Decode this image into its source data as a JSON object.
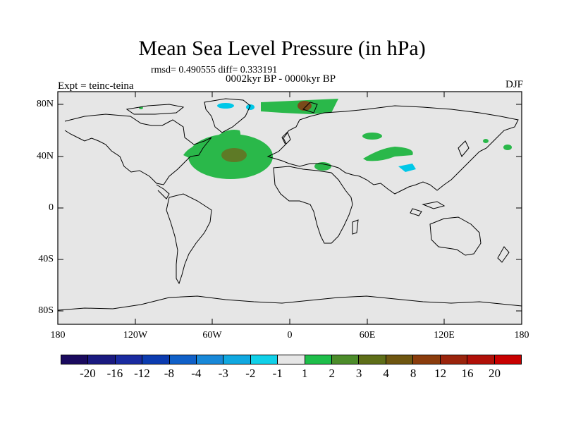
{
  "title": "Mean Sea Level Pressure (in hPa)",
  "stats": "rmsd= 0.490555 diff= 0.333191",
  "period": "0002kyr BP - 0000kyr BP",
  "experiment": "Expt = teinc-teina",
  "season": "DJF",
  "lat_labels": [
    "80N",
    "40N",
    "0",
    "40S",
    "80S"
  ],
  "lon_labels": [
    "180",
    "120W",
    "60W",
    "0",
    "60E",
    "120E",
    "180"
  ],
  "legend": {
    "colors": [
      "#1a0a5e",
      "#1a1a80",
      "#1a2ba0",
      "#0c3cb0",
      "#1060c8",
      "#1888d8",
      "#10a8e0",
      "#10d0e8",
      "#e6e6e6",
      "#1ebe4a",
      "#4c8c2a",
      "#5e6e18",
      "#6e5610",
      "#8a3c0c",
      "#9a240c",
      "#b01008",
      "#c80000"
    ],
    "labels": [
      "-20",
      "-16",
      "-12",
      "-8",
      "-4",
      "-3",
      "-2",
      "-1",
      "1",
      "2",
      "3",
      "4",
      "8",
      "12",
      "16",
      "20"
    ]
  },
  "colors": {
    "ocean": "#e6e6e6",
    "positive_light": "#2ab84a",
    "positive_dark": "#5e7a26",
    "negative": "#00c8e8",
    "brown": "#7a4a1a"
  }
}
